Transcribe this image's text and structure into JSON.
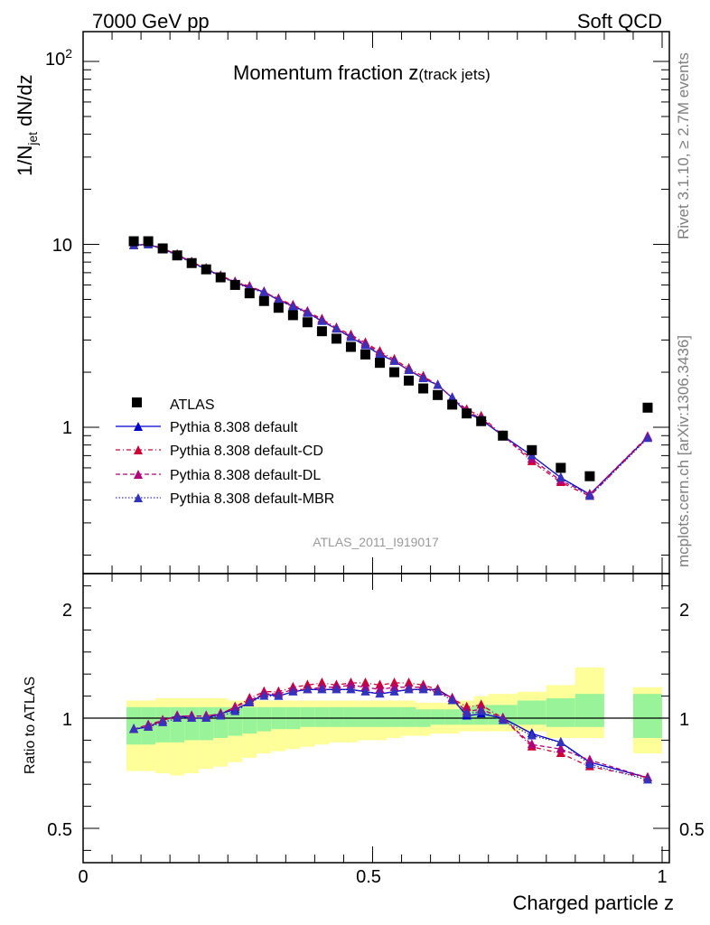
{
  "header": {
    "left": "7000 GeV pp",
    "right": "Soft QCD"
  },
  "side": {
    "rivet": "Rivet 3.1.10, ≥ 2.7M events",
    "mcplots": "mcplots.cern.ch [arXiv:1306.3436]"
  },
  "chart_data": {
    "type": "scatter",
    "title_main": "Momentum fraction z",
    "title_sub": "(track jets)",
    "analysis_id": "ATLAS_2011_I919017",
    "xlabel": "Charged particle z",
    "ylabel": "1/N",
    "ylabel_sub": "jet",
    "ylabel_suffix": " dN/dz",
    "ratio_ylabel": "Ratio to ATLAS",
    "xlim": [
      0,
      1
    ],
    "ylim_main": [
      0.15,
      150
    ],
    "log_y_main": true,
    "ylim_ratio": [
      0.35,
      2.35
    ],
    "x_ticks": [
      "0",
      "0.5",
      "1"
    ],
    "y_ticks_main": [
      "1",
      "10"
    ],
    "y_ticks_main_power_base": "10",
    "y_ticks_main_power_exp": "2",
    "y_ticks_ratio": [
      "0.5",
      "1",
      "2"
    ],
    "x": [
      0.0875,
      0.1125,
      0.1375,
      0.1625,
      0.1875,
      0.2125,
      0.2375,
      0.2625,
      0.2875,
      0.3125,
      0.3375,
      0.3625,
      0.3875,
      0.4125,
      0.4375,
      0.4625,
      0.4875,
      0.5125,
      0.5375,
      0.5625,
      0.5875,
      0.6125,
      0.6375,
      0.6625,
      0.6875,
      0.725,
      0.775,
      0.825,
      0.875,
      0.975
    ],
    "x_lo": [
      0.075,
      0.1,
      0.125,
      0.15,
      0.175,
      0.2,
      0.225,
      0.25,
      0.275,
      0.3,
      0.325,
      0.35,
      0.375,
      0.4,
      0.425,
      0.45,
      0.475,
      0.5,
      0.525,
      0.55,
      0.575,
      0.6,
      0.625,
      0.65,
      0.675,
      0.7,
      0.75,
      0.8,
      0.85,
      0.95
    ],
    "x_hi": [
      0.1,
      0.125,
      0.15,
      0.175,
      0.2,
      0.225,
      0.25,
      0.275,
      0.3,
      0.325,
      0.35,
      0.375,
      0.4,
      0.425,
      0.45,
      0.475,
      0.5,
      0.525,
      0.55,
      0.575,
      0.6,
      0.625,
      0.65,
      0.675,
      0.7,
      0.75,
      0.8,
      0.85,
      0.9,
      1.0
    ],
    "band_inner_lo": [
      0.88,
      0.88,
      0.89,
      0.89,
      0.9,
      0.9,
      0.91,
      0.92,
      0.93,
      0.94,
      0.95,
      0.95,
      0.96,
      0.96,
      0.96,
      0.96,
      0.96,
      0.96,
      0.96,
      0.96,
      0.96,
      0.97,
      0.97,
      0.97,
      0.97,
      0.97,
      0.97,
      0.96,
      0.96,
      0.91
    ],
    "band_inner_hi": [
      1.05,
      1.05,
      1.05,
      1.05,
      1.05,
      1.05,
      1.05,
      1.05,
      1.05,
      1.05,
      1.05,
      1.05,
      1.05,
      1.05,
      1.05,
      1.05,
      1.05,
      1.05,
      1.05,
      1.05,
      1.04,
      1.04,
      1.04,
      1.05,
      1.06,
      1.06,
      1.08,
      1.09,
      1.11,
      1.11
    ],
    "band_outer_lo": [
      0.76,
      0.76,
      0.75,
      0.74,
      0.75,
      0.77,
      0.78,
      0.8,
      0.82,
      0.84,
      0.85,
      0.86,
      0.87,
      0.88,
      0.89,
      0.89,
      0.9,
      0.9,
      0.91,
      0.92,
      0.92,
      0.93,
      0.93,
      0.94,
      0.94,
      0.94,
      0.94,
      0.91,
      0.91,
      0.84
    ],
    "band_outer_hi": [
      1.08,
      1.08,
      1.09,
      1.09,
      1.09,
      1.09,
      1.09,
      1.08,
      1.08,
      1.08,
      1.08,
      1.08,
      1.08,
      1.08,
      1.08,
      1.08,
      1.08,
      1.08,
      1.08,
      1.08,
      1.07,
      1.07,
      1.07,
      1.08,
      1.1,
      1.11,
      1.12,
      1.15,
      1.23,
      1.14
    ],
    "series": [
      {
        "name": "ATLAS",
        "style": "square",
        "color": "#000000",
        "values": [
          10.4,
          10.4,
          9.5,
          8.7,
          7.9,
          7.3,
          6.6,
          6.0,
          5.4,
          4.9,
          4.5,
          4.1,
          3.75,
          3.35,
          3.05,
          2.75,
          2.5,
          2.25,
          2.0,
          1.8,
          1.63,
          1.5,
          1.33,
          1.19,
          1.08,
          0.9,
          0.75,
          0.6,
          0.54,
          1.28
        ]
      },
      {
        "name": "Pythia 8.308 default",
        "style": "solid",
        "color": "#0000cc",
        "values": [
          9.9,
          10.0,
          9.45,
          8.75,
          7.95,
          7.35,
          6.7,
          6.2,
          5.8,
          5.5,
          4.95,
          4.6,
          4.25,
          3.8,
          3.45,
          3.1,
          2.8,
          2.5,
          2.3,
          2.05,
          1.85,
          1.7,
          1.45,
          1.2,
          1.1,
          0.9,
          0.7,
          0.53,
          0.43,
          0.88
        ],
        "ratio": [
          0.95,
          0.96,
          0.99,
          1.01,
          1.0,
          1.0,
          1.02,
          1.04,
          1.07,
          1.11,
          1.1,
          1.12,
          1.13,
          1.13,
          1.13,
          1.13,
          1.12,
          1.11,
          1.12,
          1.13,
          1.13,
          1.13,
          1.09,
          1.01,
          1.02,
          1.0,
          0.93,
          0.89,
          0.8,
          0.73
        ]
      },
      {
        "name": "Pythia 8.308 default-CD",
        "style": "dashdot",
        "color": "#cc0033",
        "values": [
          9.85,
          10.0,
          9.5,
          8.8,
          8.0,
          7.4,
          6.75,
          6.25,
          5.9,
          5.5,
          5.05,
          4.65,
          4.3,
          3.9,
          3.5,
          3.2,
          2.9,
          2.6,
          2.35,
          2.1,
          1.9,
          1.7,
          1.45,
          1.25,
          1.15,
          0.9,
          0.65,
          0.5,
          0.42,
          0.88
        ],
        "ratio": [
          0.95,
          0.96,
          0.99,
          1.01,
          1.01,
          1.01,
          1.02,
          1.05,
          1.09,
          1.12,
          1.12,
          1.14,
          1.15,
          1.16,
          1.15,
          1.16,
          1.16,
          1.15,
          1.16,
          1.16,
          1.15,
          1.13,
          1.09,
          1.05,
          1.06,
          1.0,
          0.87,
          0.84,
          0.78,
          0.73
        ]
      },
      {
        "name": "Pythia 8.308 default-DL",
        "style": "dashed",
        "color": "#b0007a",
        "values": [
          9.9,
          10.05,
          9.5,
          8.8,
          8.0,
          7.35,
          6.7,
          6.2,
          5.85,
          5.5,
          5.0,
          4.6,
          4.25,
          3.85,
          3.45,
          3.15,
          2.85,
          2.55,
          2.3,
          2.05,
          1.87,
          1.7,
          1.45,
          1.22,
          1.12,
          0.9,
          0.67,
          0.51,
          0.43,
          0.89
        ],
        "ratio": [
          0.95,
          0.97,
          0.99,
          1.01,
          1.01,
          1.01,
          1.02,
          1.05,
          1.08,
          1.11,
          1.11,
          1.13,
          1.13,
          1.14,
          1.14,
          1.15,
          1.14,
          1.13,
          1.14,
          1.14,
          1.14,
          1.12,
          1.09,
          1.03,
          1.04,
          1.0,
          0.88,
          0.86,
          0.81,
          0.73
        ]
      },
      {
        "name": "Pythia 8.308 default-MBR",
        "style": "dotted",
        "color": "#3333bb",
        "values": [
          9.85,
          9.95,
          9.4,
          8.7,
          7.9,
          7.3,
          6.65,
          6.15,
          5.75,
          5.45,
          4.95,
          4.55,
          4.2,
          3.8,
          3.45,
          3.1,
          2.8,
          2.5,
          2.3,
          2.05,
          1.85,
          1.7,
          1.45,
          1.2,
          1.1,
          0.9,
          0.7,
          0.53,
          0.42,
          0.87
        ],
        "ratio": [
          0.95,
          0.96,
          0.98,
          1.0,
          1.0,
          1.0,
          1.01,
          1.03,
          1.07,
          1.1,
          1.1,
          1.12,
          1.13,
          1.13,
          1.13,
          1.13,
          1.12,
          1.11,
          1.12,
          1.13,
          1.13,
          1.12,
          1.08,
          1.02,
          1.03,
          0.99,
          0.92,
          0.89,
          0.79,
          0.72
        ]
      }
    ],
    "legend_position": "lower-left",
    "band_colors": {
      "inner": "#99f499",
      "outer": "#ffff99"
    }
  }
}
